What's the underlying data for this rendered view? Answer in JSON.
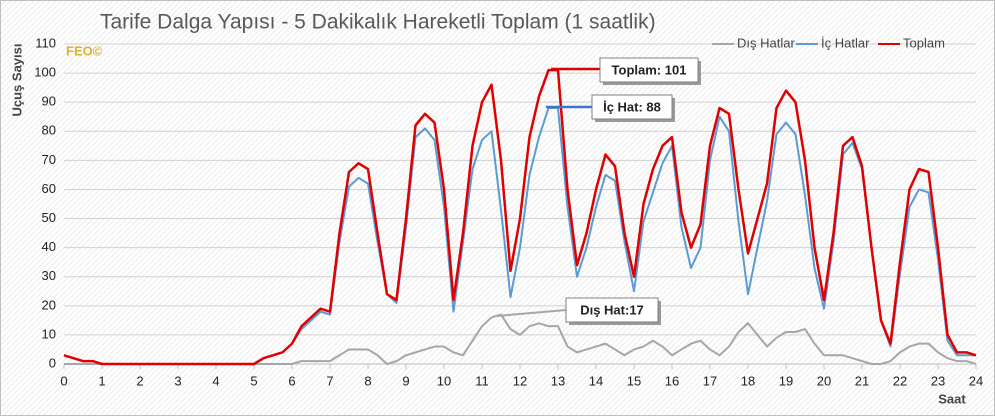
{
  "chart_data": {
    "type": "line",
    "title": "Tarife Dalga Yapısı - 5 Dakikalık Hareketli Toplam (1 saatlik)",
    "watermark": "FEO©",
    "xlabel": "Saat",
    "ylabel": "Uçuş Sayısı",
    "x": [
      0,
      0.25,
      0.5,
      0.75,
      1,
      1.25,
      1.5,
      1.75,
      2,
      2.25,
      2.5,
      2.75,
      3,
      3.25,
      3.5,
      3.75,
      4,
      4.25,
      4.5,
      4.75,
      5,
      5.25,
      5.5,
      5.75,
      6,
      6.25,
      6.5,
      6.75,
      7,
      7.25,
      7.5,
      7.75,
      8,
      8.25,
      8.5,
      8.75,
      9,
      9.25,
      9.5,
      9.75,
      10,
      10.25,
      10.5,
      10.75,
      11,
      11.25,
      11.5,
      11.75,
      12,
      12.25,
      12.5,
      12.75,
      13,
      13.25,
      13.5,
      13.75,
      14,
      14.25,
      14.5,
      14.75,
      15,
      15.25,
      15.5,
      15.75,
      16,
      16.25,
      16.5,
      16.75,
      17,
      17.25,
      17.5,
      17.75,
      18,
      18.25,
      18.5,
      18.75,
      19,
      19.25,
      19.5,
      19.75,
      20,
      20.25,
      20.5,
      20.75,
      21,
      21.25,
      21.5,
      21.75,
      22,
      22.25,
      22.5,
      22.75,
      23,
      23.25,
      23.5,
      23.75,
      24
    ],
    "series": [
      {
        "name": "Dış Hatlar",
        "color": "#a6a6a6",
        "width": 2,
        "values": [
          0,
          0,
          0,
          0,
          0,
          0,
          0,
          0,
          0,
          0,
          0,
          0,
          0,
          0,
          0,
          0,
          0,
          0,
          0,
          0,
          0,
          0,
          0,
          0,
          0,
          1,
          1,
          1,
          1,
          3,
          5,
          5,
          5,
          3,
          0,
          1,
          3,
          4,
          5,
          6,
          6,
          4,
          3,
          8,
          13,
          16,
          17,
          12,
          10,
          13,
          14,
          13,
          13,
          6,
          4,
          5,
          6,
          7,
          5,
          3,
          5,
          6,
          8,
          6,
          3,
          5,
          7,
          8,
          5,
          3,
          6,
          11,
          14,
          10,
          6,
          9,
          11,
          11,
          12,
          7,
          3,
          3,
          3,
          2,
          1,
          0,
          0,
          1,
          4,
          6,
          7,
          7,
          4,
          2,
          1,
          1,
          0
        ]
      },
      {
        "name": "İç Hatlar",
        "color": "#5b9bd5",
        "width": 2,
        "values": [
          3,
          2,
          1,
          1,
          0,
          0,
          0,
          0,
          0,
          0,
          0,
          0,
          0,
          0,
          0,
          0,
          0,
          0,
          0,
          0,
          0,
          2,
          3,
          4,
          7,
          12,
          15,
          18,
          17,
          42,
          61,
          64,
          62,
          42,
          24,
          21,
          47,
          78,
          81,
          77,
          54,
          18,
          42,
          67,
          77,
          80,
          53,
          23,
          40,
          65,
          78,
          88,
          88,
          54,
          30,
          40,
          54,
          65,
          63,
          42,
          25,
          49,
          59,
          69,
          75,
          47,
          33,
          40,
          70,
          85,
          80,
          49,
          24,
          40,
          56,
          79,
          83,
          79,
          58,
          33,
          19,
          42,
          72,
          76,
          67,
          40,
          15,
          6,
          31,
          54,
          60,
          59,
          36,
          8,
          3,
          3,
          3
        ]
      },
      {
        "name": "Toplam",
        "color": "#e00000",
        "width": 2.5,
        "values": [
          3,
          2,
          1,
          1,
          0,
          0,
          0,
          0,
          0,
          0,
          0,
          0,
          0,
          0,
          0,
          0,
          0,
          0,
          0,
          0,
          0,
          2,
          3,
          4,
          7,
          13,
          16,
          19,
          18,
          45,
          66,
          69,
          67,
          45,
          24,
          22,
          50,
          82,
          86,
          83,
          60,
          22,
          45,
          75,
          90,
          96,
          70,
          32,
          50,
          78,
          92,
          101,
          101,
          60,
          34,
          45,
          60,
          72,
          68,
          45,
          30,
          55,
          67,
          75,
          78,
          52,
          40,
          48,
          75,
          88,
          86,
          60,
          38,
          50,
          62,
          88,
          94,
          90,
          70,
          40,
          22,
          45,
          75,
          78,
          68,
          40,
          15,
          7,
          35,
          60,
          67,
          66,
          40,
          10,
          4,
          4,
          3
        ]
      }
    ],
    "annotations": [
      "Toplam: 101",
      "İç Hat: 88",
      "Dış Hat:17"
    ],
    "xlim": [
      0,
      24
    ],
    "xticks": [
      0,
      1,
      2,
      3,
      4,
      5,
      6,
      7,
      8,
      9,
      10,
      11,
      12,
      13,
      14,
      15,
      16,
      17,
      18,
      19,
      20,
      21,
      22,
      23,
      24
    ],
    "ylim": [
      0,
      110
    ],
    "yticks": [
      0,
      10,
      20,
      30,
      40,
      50,
      60,
      70,
      80,
      90,
      100,
      110
    ],
    "grid": true,
    "legend": "top-right"
  }
}
